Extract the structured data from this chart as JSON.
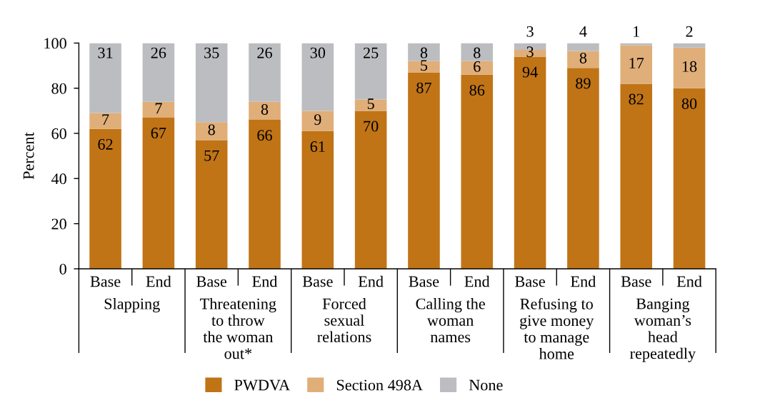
{
  "chart_data": {
    "type": "bar",
    "stacked": true,
    "categories": [
      "Base",
      "End",
      "Base",
      "End",
      "Base",
      "End",
      "Base",
      "End",
      "Base",
      "End",
      "Base",
      "End"
    ],
    "series": [
      {
        "name": "PWDVA",
        "color": "#c07416",
        "values": [
          62,
          67,
          57,
          66,
          61,
          70,
          87,
          86,
          94,
          89,
          82,
          80
        ],
        "value_labels": [
          "62",
          "67",
          "57",
          "66",
          "61",
          "70",
          "87",
          "86",
          "94",
          "89",
          "82",
          "80"
        ]
      },
      {
        "name": "Section 498A",
        "color": "#e0ae78",
        "values": [
          7,
          7,
          8,
          8,
          9,
          5,
          5,
          6,
          3,
          7.5,
          17,
          18
        ],
        "value_labels": [
          "7",
          "7",
          "8",
          "8",
          "9",
          "5",
          "5",
          "6",
          "3",
          "8",
          "17",
          "18"
        ]
      },
      {
        "name": "None",
        "color": "#bcbdc0",
        "values": [
          31,
          26,
          35,
          26,
          30,
          25,
          8,
          8,
          3,
          3.5,
          1,
          2
        ],
        "value_labels": [
          "31",
          "26",
          "35",
          "26",
          "30",
          "25",
          "8",
          "8",
          "3",
          "4",
          "1",
          "2"
        ]
      }
    ],
    "ylabel": "Percent",
    "ylim": [
      0,
      100
    ],
    "yticks": [
      0,
      20,
      40,
      60,
      80,
      100
    ],
    "grid": false,
    "legend": "bottom",
    "annotations": [
      "Slapping",
      "Threatening\nto throw\nthe woman\nout*",
      "Forced\nsexual\nrelations",
      "Calling the\nwoman\nnames",
      "Refusing to\ngive money\nto manage\nhome",
      "Banging\nwoman’s\nhead\nrepeatedly"
    ]
  }
}
